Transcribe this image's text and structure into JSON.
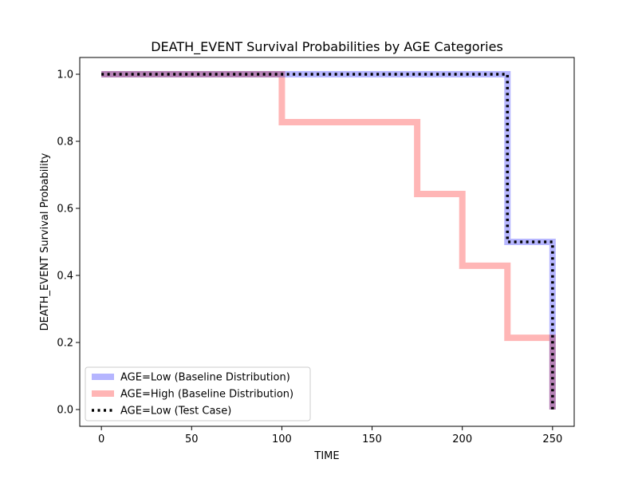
{
  "chart_data": {
    "type": "line",
    "step": "post",
    "title": "DEATH_EVENT Survival Probabilities by AGE Categories",
    "xlabel": "TIME",
    "ylabel": "DEATH_EVENT Survival Probability",
    "xlim": [
      -12,
      262
    ],
    "ylim": [
      -0.05,
      1.05
    ],
    "xticks": [
      0,
      50,
      100,
      150,
      200,
      250
    ],
    "xtick_labels": [
      "0",
      "50",
      "100",
      "150",
      "200",
      "250"
    ],
    "yticks": [
      0.0,
      0.2,
      0.4,
      0.6,
      0.8,
      1.0
    ],
    "ytick_labels": [
      "0.0",
      "0.2",
      "0.4",
      "0.6",
      "0.8",
      "1.0"
    ],
    "grid": false,
    "legend_position": "lower-left",
    "series": [
      {
        "name": "AGE=Low (Baseline Distribution)",
        "color": "#b2b2ff",
        "style": "solid-thick",
        "x": [
          0,
          225,
          225,
          250,
          250
        ],
        "y": [
          1.0,
          1.0,
          0.5,
          0.5,
          0.0
        ]
      },
      {
        "name": "AGE=High (Baseline Distribution)",
        "color": "#ffb2b2",
        "style": "solid-thick",
        "x": [
          0,
          100,
          100,
          175,
          175,
          200,
          200,
          225,
          225,
          250,
          250
        ],
        "y": [
          1.0,
          1.0,
          0.857,
          0.857,
          0.643,
          0.643,
          0.429,
          0.429,
          0.214,
          0.214,
          0.0
        ]
      },
      {
        "name": "AGE=Low (Test Case)",
        "color": "#000000",
        "style": "dotted",
        "x": [
          0,
          225,
          225,
          250,
          250
        ],
        "y": [
          1.0,
          1.0,
          0.5,
          0.5,
          0.0
        ]
      }
    ],
    "overlap_colors": [
      "#c87fb5",
      "#b57fc8"
    ]
  }
}
